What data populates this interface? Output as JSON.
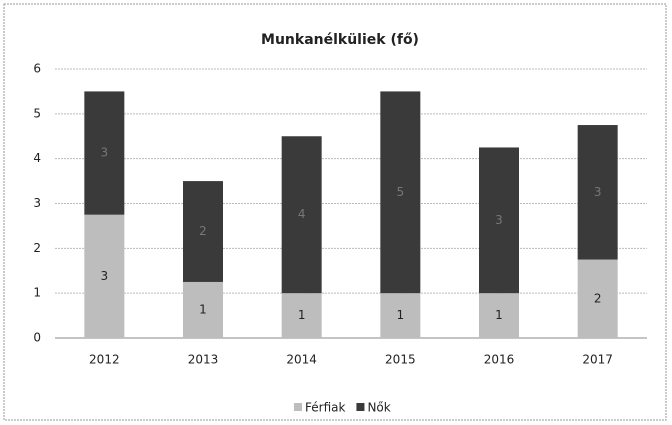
{
  "chart_data": {
    "type": "stacked_bar",
    "title": "Munkanélküliek (fő)",
    "categories": [
      "2012",
      "2013",
      "2014",
      "2015",
      "2016",
      "2017"
    ],
    "series": [
      {
        "name": "Férfiak",
        "color": "#bdbdbd",
        "values": [
          2.75,
          1.25,
          1,
          1,
          1,
          1.75
        ],
        "value_labels": [
          "3",
          "1",
          "1",
          "1",
          "1",
          "2"
        ]
      },
      {
        "name": "Nők",
        "color": "#3a3a3a",
        "values": [
          2.75,
          2.25,
          3.5,
          4.5,
          3.25,
          3
        ],
        "value_labels": [
          "3",
          "2",
          "4",
          "5",
          "3",
          "3"
        ]
      }
    ],
    "ylim": [
      0,
      6
    ],
    "yticks": [
      0,
      1,
      2,
      3,
      4,
      5,
      6
    ],
    "grid": true,
    "legend": "bottom"
  }
}
